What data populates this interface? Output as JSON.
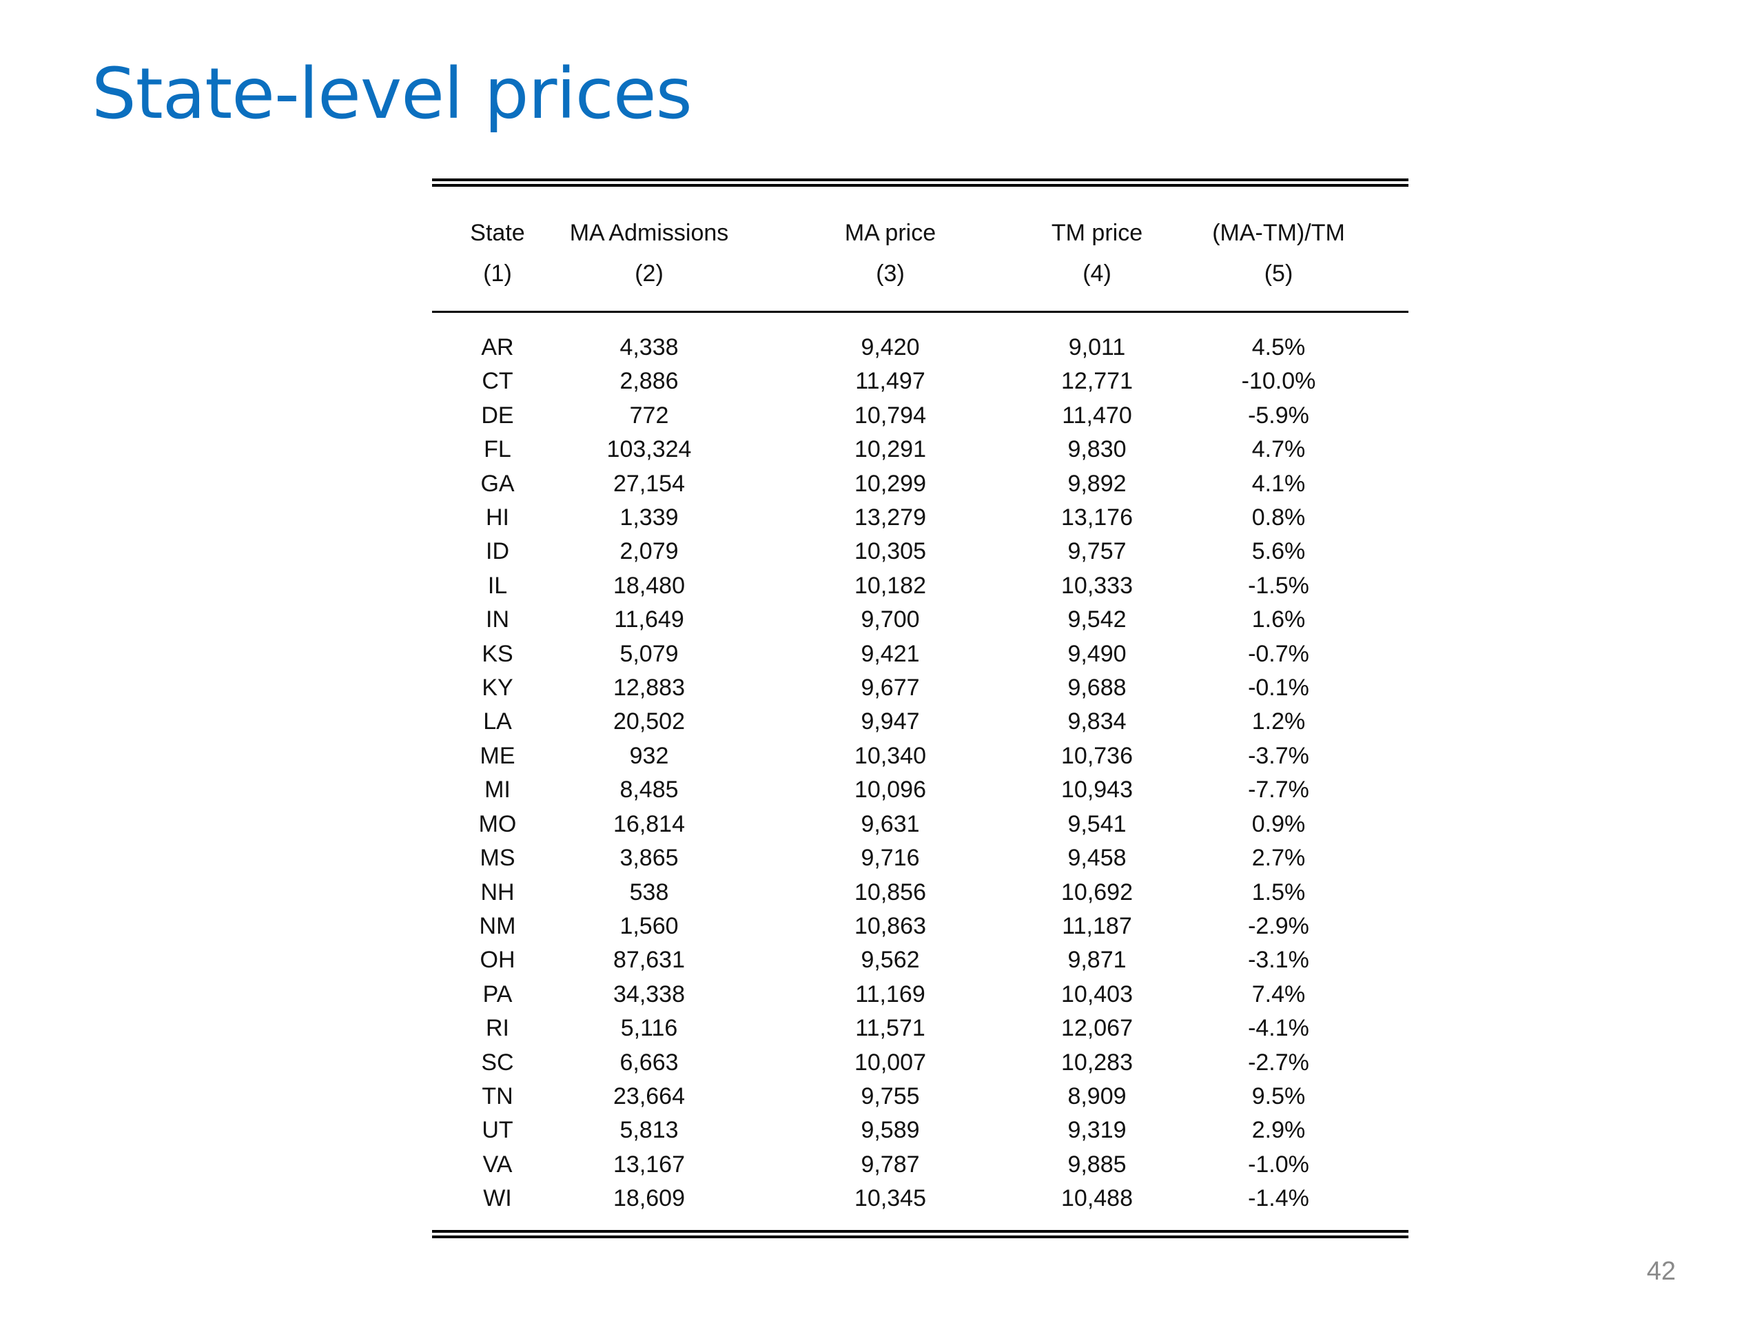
{
  "slide": {
    "title": "State-level prices",
    "page_number": "42"
  },
  "table": {
    "headers": [
      "State",
      "MA Admissions",
      "MA price",
      "TM price",
      "(MA-TM)/TM"
    ],
    "column_numbers": [
      "(1)",
      "(2)",
      "(3)",
      "(4)",
      "(5)"
    ],
    "rows": [
      [
        "AR",
        "4,338",
        "9,420",
        "9,011",
        "4.5%"
      ],
      [
        "CT",
        "2,886",
        "11,497",
        "12,771",
        "-10.0%"
      ],
      [
        "DE",
        "772",
        "10,794",
        "11,470",
        "-5.9%"
      ],
      [
        "FL",
        "103,324",
        "10,291",
        "9,830",
        "4.7%"
      ],
      [
        "GA",
        "27,154",
        "10,299",
        "9,892",
        "4.1%"
      ],
      [
        "HI",
        "1,339",
        "13,279",
        "13,176",
        "0.8%"
      ],
      [
        "ID",
        "2,079",
        "10,305",
        "9,757",
        "5.6%"
      ],
      [
        "IL",
        "18,480",
        "10,182",
        "10,333",
        "-1.5%"
      ],
      [
        "IN",
        "11,649",
        "9,700",
        "9,542",
        "1.6%"
      ],
      [
        "KS",
        "5,079",
        "9,421",
        "9,490",
        "-0.7%"
      ],
      [
        "KY",
        "12,883",
        "9,677",
        "9,688",
        "-0.1%"
      ],
      [
        "LA",
        "20,502",
        "9,947",
        "9,834",
        "1.2%"
      ],
      [
        "ME",
        "932",
        "10,340",
        "10,736",
        "-3.7%"
      ],
      [
        "MI",
        "8,485",
        "10,096",
        "10,943",
        "-7.7%"
      ],
      [
        "MO",
        "16,814",
        "9,631",
        "9,541",
        "0.9%"
      ],
      [
        "MS",
        "3,865",
        "9,716",
        "9,458",
        "2.7%"
      ],
      [
        "NH",
        "538",
        "10,856",
        "10,692",
        "1.5%"
      ],
      [
        "NM",
        "1,560",
        "10,863",
        "11,187",
        "-2.9%"
      ],
      [
        "OH",
        "87,631",
        "9,562",
        "9,871",
        "-3.1%"
      ],
      [
        "PA",
        "34,338",
        "11,169",
        "10,403",
        "7.4%"
      ],
      [
        "RI",
        "5,116",
        "11,571",
        "12,067",
        "-4.1%"
      ],
      [
        "SC",
        "6,663",
        "10,007",
        "10,283",
        "-2.7%"
      ],
      [
        "TN",
        "23,664",
        "9,755",
        "8,909",
        "9.5%"
      ],
      [
        "UT",
        "5,813",
        "9,589",
        "9,319",
        "2.9%"
      ],
      [
        "VA",
        "13,167",
        "9,787",
        "9,885",
        "-1.0%"
      ],
      [
        "WI",
        "18,609",
        "10,345",
        "10,488",
        "-1.4%"
      ]
    ]
  }
}
